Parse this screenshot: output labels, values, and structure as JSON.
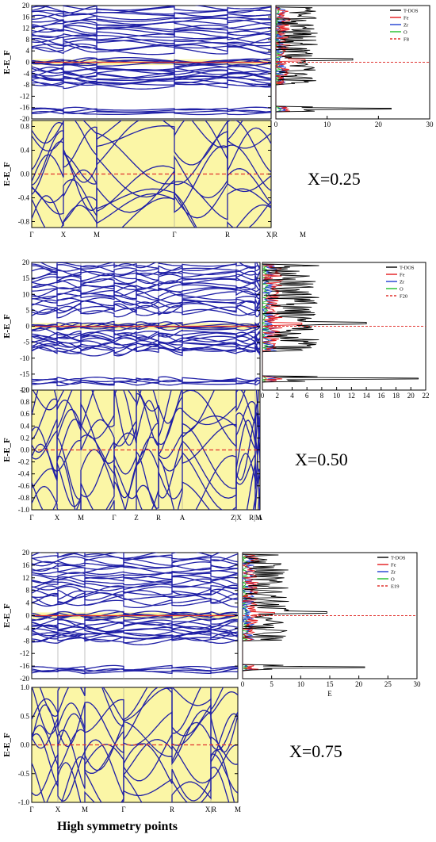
{
  "figure": {
    "xaxis_title": "High symmetry points"
  },
  "chart_data": [
    {
      "type": "line",
      "panel": "band-structure-full",
      "label": "X=0.25",
      "ylabel": "E-E_F",
      "ylim": [
        -20,
        20
      ],
      "yticks": [
        -20,
        -16,
        -12,
        -8,
        -4,
        0,
        4,
        8,
        12,
        16,
        20
      ],
      "kpoints": [
        "Γ",
        "X",
        "M",
        "Γ",
        "R",
        "X|R",
        "M"
      ],
      "fermi_level": 0,
      "band_color": "#1f1fa6",
      "fermi_color": "#e0332f",
      "background": "#fbf6a6"
    },
    {
      "type": "line",
      "panel": "dos",
      "label": "X=0.25",
      "xlim": [
        0,
        30
      ],
      "xticks": [
        0,
        10,
        20,
        30
      ],
      "ylim": [
        -20,
        20
      ],
      "series": [
        {
          "name": "T-DOS",
          "color": "#000000"
        },
        {
          "name": "Fe",
          "color": "#e31a1c"
        },
        {
          "name": "Zr",
          "color": "#1f3fd1"
        },
        {
          "name": "O",
          "color": "#1fbf2a"
        },
        {
          "name": "F8",
          "color": "#e0332f",
          "dashed": true
        }
      ],
      "peaks": [
        22.5,
        15,
        10,
        8
      ]
    },
    {
      "type": "line",
      "panel": "band-structure-zoom",
      "label": "X=0.25",
      "ylabel": "E-E_F",
      "ylim": [
        -0.9,
        0.9
      ],
      "yticks": [
        -0.8,
        -0.4,
        0.0,
        0.4,
        0.8
      ],
      "kpoints": [
        "Γ",
        "X",
        "M",
        "Γ",
        "R",
        "X|R",
        "M"
      ]
    },
    {
      "type": "line",
      "panel": "band-structure-full",
      "label": "X=0.50",
      "ylabel": "E-E_F",
      "ylim": [
        -20,
        20
      ],
      "yticks": [
        -20,
        -15,
        -10,
        -5,
        0,
        5,
        10,
        15,
        20
      ],
      "kpoints": [
        "Γ",
        "X",
        "M",
        "Γ",
        "Z",
        "R",
        "A",
        "Z|X",
        "R|M",
        "A"
      ]
    },
    {
      "type": "line",
      "panel": "dos",
      "label": "X=0.50",
      "xlim": [
        0,
        22
      ],
      "xticks": [
        0,
        2,
        4,
        6,
        8,
        10,
        12,
        14,
        16,
        18,
        20,
        22
      ],
      "ylim": [
        -20,
        20
      ],
      "series": [
        {
          "name": "T-DOS",
          "color": "#000000"
        },
        {
          "name": "Fe",
          "color": "#e31a1c"
        },
        {
          "name": "Zr",
          "color": "#1f3fd1"
        },
        {
          "name": "O",
          "color": "#1fbf2a"
        },
        {
          "name": "F20",
          "color": "#e0332f",
          "dashed": true
        }
      ],
      "peaks": [
        21,
        14
      ]
    },
    {
      "type": "line",
      "panel": "band-structure-zoom",
      "label": "X=0.50",
      "ylabel": "E-E_F",
      "ylim": [
        -1.0,
        1.0
      ],
      "yticks": [
        -1.0,
        -0.8,
        -0.6,
        -0.4,
        -0.2,
        0.0,
        0.2,
        0.4,
        0.6,
        0.8,
        1.0
      ],
      "kpoints": [
        "Γ",
        "X",
        "M",
        "Γ",
        "Z",
        "R",
        "A",
        "Z|X",
        "R|M",
        "A"
      ]
    },
    {
      "type": "line",
      "panel": "band-structure-full",
      "label": "X=0.75",
      "ylabel": "E-E_F",
      "ylim": [
        -20,
        20
      ],
      "yticks": [
        -20,
        -16,
        -12,
        -8,
        -4,
        0,
        4,
        8,
        12,
        16,
        20
      ],
      "kpoints": [
        "Γ",
        "X",
        "M",
        "Γ",
        "R",
        "X|R",
        "M"
      ]
    },
    {
      "type": "line",
      "panel": "dos",
      "label": "X=0.75",
      "xlim": [
        0,
        30
      ],
      "xticks": [
        0,
        5,
        10,
        15,
        20,
        25,
        30
      ],
      "xlabel": "E",
      "ylim": [
        -20,
        20
      ],
      "series": [
        {
          "name": "T-DOS",
          "color": "#000000"
        },
        {
          "name": "Fe",
          "color": "#e31a1c"
        },
        {
          "name": "Zr",
          "color": "#1f3fd1"
        },
        {
          "name": "O",
          "color": "#1fbf2a"
        },
        {
          "name": "E19",
          "color": "#e0332f",
          "dashed": true
        }
      ],
      "peaks": [
        21,
        14.5
      ]
    },
    {
      "type": "line",
      "panel": "band-structure-zoom",
      "label": "X=0.75",
      "ylabel": "E-E_F",
      "ylim": [
        -1.0,
        1.0
      ],
      "yticks": [
        -1.0,
        -0.5,
        0.0,
        0.5,
        1.0
      ],
      "kpoints": [
        "Γ",
        "X",
        "M",
        "Γ",
        "R",
        "X|R",
        "M"
      ]
    }
  ]
}
